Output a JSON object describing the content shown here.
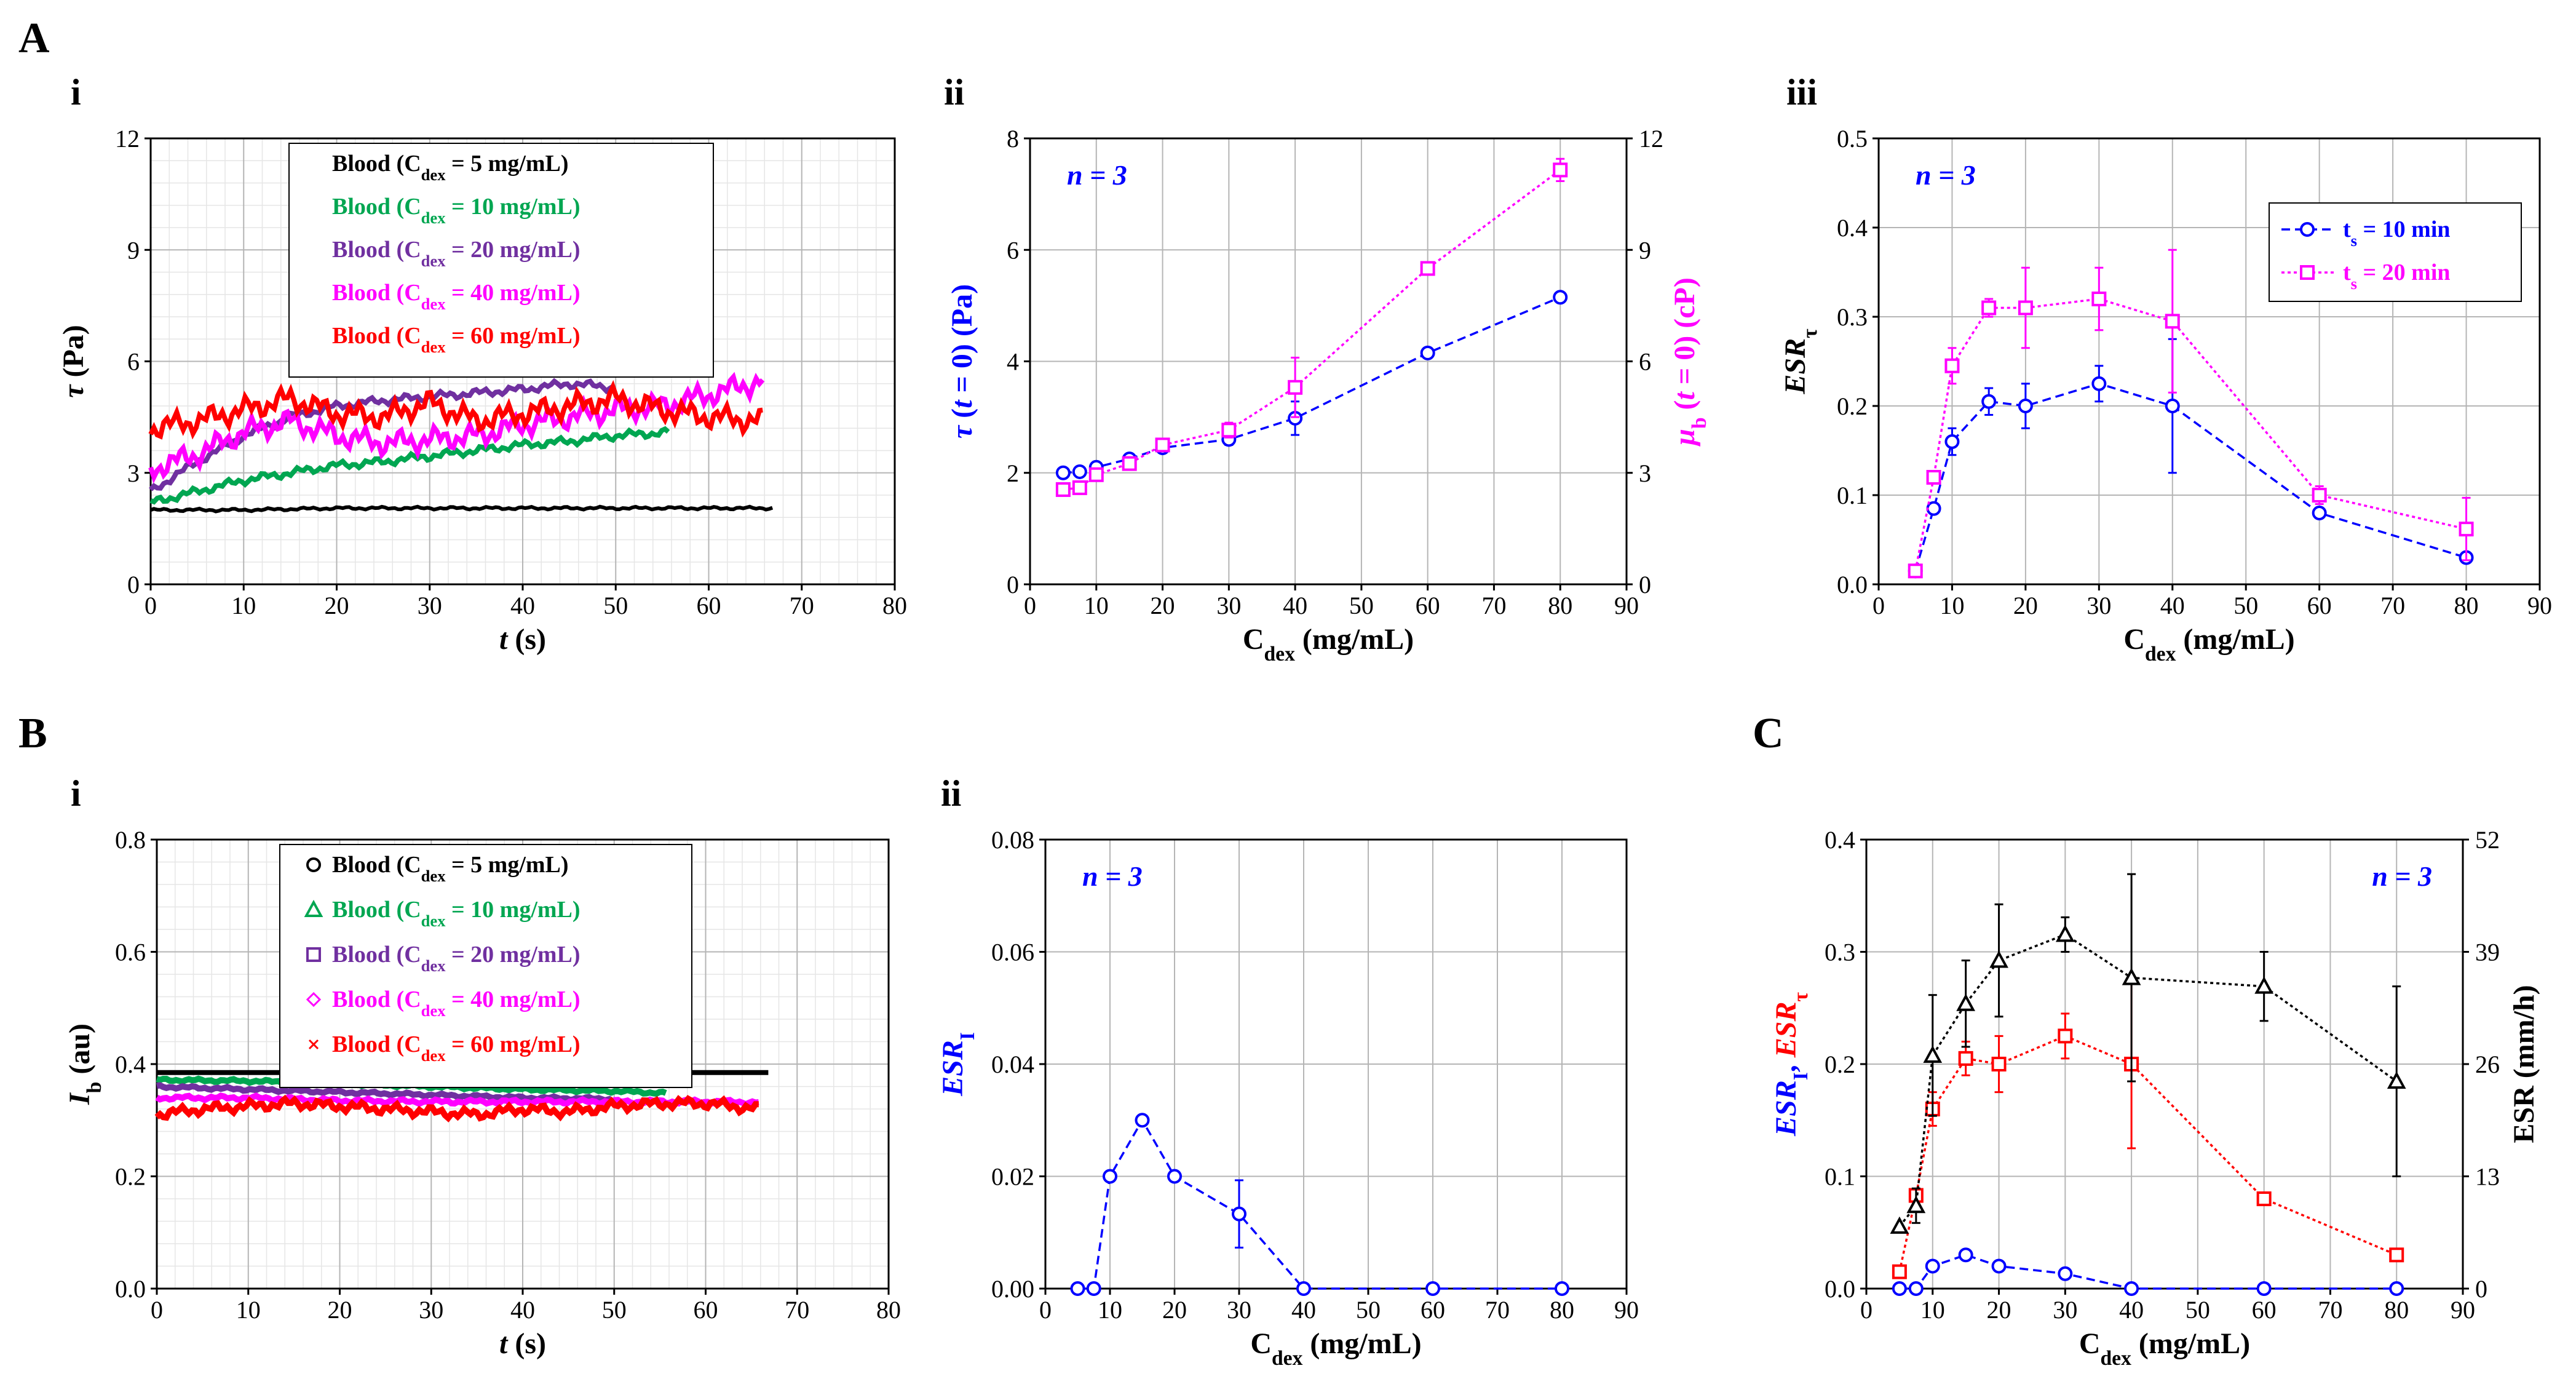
{
  "panel_labels": {
    "A": "A",
    "B": "B",
    "C": "C"
  },
  "legend_entries": [
    {
      "pre": "Blood (C",
      "sub": "dex",
      "post": " = 5 mg/mL)",
      "color": "#000000",
      "marker": "circle"
    },
    {
      "pre": "Blood (C",
      "sub": "dex",
      "post": " = 10 mg/mL)",
      "color": "#00a651",
      "marker": "triangle"
    },
    {
      "pre": "Blood (C",
      "sub": "dex",
      "post": " = 20 mg/mL)",
      "color": "#7030a0",
      "marker": "square"
    },
    {
      "pre": "Blood (C",
      "sub": "dex",
      "post": " = 40 mg/mL)",
      "color": "#ff00ff",
      "marker": "diamond"
    },
    {
      "pre": "Blood (C",
      "sub": "dex",
      "post": " = 60 mg/mL)",
      "color": "#ff0000",
      "marker": "x"
    }
  ],
  "chart_data": [
    {
      "id": "Ai",
      "panel": "i",
      "type": "line",
      "xlabel": "t (s)",
      "ylabel": "τ (Pa)",
      "xlim": [
        0,
        80
      ],
      "ylim": [
        0,
        12
      ],
      "xticks": [
        0,
        10,
        20,
        30,
        40,
        50,
        60,
        70,
        80
      ],
      "yticks": [
        0,
        3,
        6,
        9,
        12
      ],
      "legend_position": "top-center",
      "series": [
        {
          "name": "Blood (Cdex = 5 mg/mL)",
          "color": "#000000",
          "x": [
            0,
            10,
            20,
            30,
            40,
            50,
            60,
            67
          ],
          "y": [
            2.0,
            2.0,
            2.05,
            2.05,
            2.05,
            2.05,
            2.05,
            2.05
          ]
        },
        {
          "name": "Blood (Cdex = 10 mg/mL)",
          "color": "#00a651",
          "x": [
            0,
            5,
            10,
            15,
            20,
            25,
            30,
            35,
            40,
            45,
            50,
            56
          ],
          "y": [
            2.2,
            2.5,
            2.8,
            3.0,
            3.2,
            3.3,
            3.45,
            3.6,
            3.75,
            3.85,
            4.0,
            4.1
          ]
        },
        {
          "name": "Blood (Cdex = 20 mg/mL)",
          "color": "#7030a0",
          "x": [
            0,
            5,
            10,
            15,
            20,
            25,
            30,
            35,
            40,
            45,
            50
          ],
          "y": [
            2.5,
            3.3,
            4.0,
            4.5,
            4.8,
            4.95,
            5.05,
            5.15,
            5.25,
            5.4,
            5.3
          ]
        },
        {
          "name": "Blood (Cdex = 40 mg/mL)",
          "color": "#ff00ff",
          "x": [
            0,
            5,
            10,
            15,
            20,
            25,
            30,
            35,
            40,
            45,
            50,
            55,
            60,
            66
          ],
          "y": [
            3.1,
            3.5,
            4.1,
            4.4,
            4.0,
            3.8,
            3.9,
            4.0,
            4.3,
            4.5,
            4.7,
            4.8,
            5.1,
            5.5
          ]
        },
        {
          "name": "Blood (Cdex = 60 mg/mL)",
          "color": "#ff0000",
          "x": [
            0,
            5,
            10,
            15,
            20,
            25,
            30,
            35,
            40,
            45,
            50,
            55,
            60,
            66
          ],
          "y": [
            4.2,
            4.4,
            4.7,
            5.0,
            4.6,
            4.5,
            4.9,
            4.4,
            4.6,
            4.8,
            5.0,
            4.7,
            4.5,
            4.4
          ]
        }
      ]
    },
    {
      "id": "Aii",
      "panel": "ii",
      "type": "line",
      "xlabel": "Cdex (mg/mL)",
      "ylabel": "τ (t = 0) (Pa)",
      "ylabel2": "μb (t = 0) (cP)",
      "xlim": [
        0,
        90
      ],
      "ylim": [
        0,
        8
      ],
      "ylim2": [
        0,
        12
      ],
      "xticks": [
        0,
        10,
        20,
        30,
        40,
        50,
        60,
        70,
        80,
        90
      ],
      "yticks": [
        0,
        2,
        4,
        6,
        8
      ],
      "yticks2": [
        0,
        3,
        6,
        9,
        12
      ],
      "annotation": "n = 3",
      "series": [
        {
          "name": "τ (t = 0)",
          "axis": "left",
          "color": "#0000ff",
          "marker": "circle",
          "dash": "dashed",
          "x": [
            5,
            7.5,
            10,
            15,
            20,
            30,
            40,
            60,
            80
          ],
          "y": [
            2.0,
            2.02,
            2.1,
            2.25,
            2.45,
            2.6,
            2.98,
            4.15,
            5.15
          ],
          "err": [
            0,
            0,
            0.05,
            0.05,
            0.08,
            0.1,
            0.3,
            0.05,
            0.07
          ]
        },
        {
          "name": "μb (t = 0)",
          "axis": "right",
          "color": "#ff00ff",
          "marker": "square",
          "dash": "dotted",
          "x": [
            5,
            7.5,
            10,
            15,
            20,
            30,
            40,
            60,
            80
          ],
          "y": [
            2.55,
            2.6,
            2.95,
            3.25,
            3.75,
            4.15,
            5.3,
            8.5,
            11.15
          ],
          "err": [
            0,
            0,
            0.1,
            0.1,
            0.1,
            0.2,
            0.8,
            0.1,
            0.3
          ]
        }
      ]
    },
    {
      "id": "Aiii",
      "panel": "iii",
      "type": "line",
      "xlabel": "Cdex (mg/mL)",
      "ylabel": "ESRτ",
      "xlim": [
        0,
        90
      ],
      "ylim": [
        0,
        0.5
      ],
      "xticks": [
        0,
        10,
        20,
        30,
        40,
        50,
        60,
        70,
        80,
        90
      ],
      "yticks": [
        0.0,
        0.1,
        0.2,
        0.3,
        0.4,
        0.5
      ],
      "annotation": "n = 3",
      "legend_position": "top-right",
      "series": [
        {
          "name": "ts = 10 min",
          "color": "#0000ff",
          "marker": "circle",
          "dash": "dashed",
          "x": [
            5,
            7.5,
            10,
            15,
            20,
            30,
            40,
            60,
            80
          ],
          "y": [
            0.015,
            0.085,
            0.16,
            0.205,
            0.2,
            0.225,
            0.2,
            0.08,
            0.03
          ],
          "err": [
            0.005,
            0.005,
            0.015,
            0.015,
            0.025,
            0.02,
            0.075,
            0.005,
            0.005
          ]
        },
        {
          "name": "ts = 20 min",
          "color": "#ff00ff",
          "marker": "square",
          "dash": "dotted",
          "x": [
            5,
            7.5,
            10,
            15,
            20,
            30,
            40,
            60,
            80
          ],
          "y": [
            0.015,
            0.12,
            0.245,
            0.31,
            0.31,
            0.32,
            0.295,
            0.1,
            0.062
          ],
          "err": [
            0.005,
            0.005,
            0.02,
            0.01,
            0.045,
            0.035,
            0.08,
            0.01,
            0.035
          ]
        }
      ]
    },
    {
      "id": "Bi",
      "panel": "i",
      "type": "line",
      "xlabel": "t (s)",
      "ylabel": "Ib (au)",
      "xlim": [
        0,
        80
      ],
      "ylim": [
        0,
        0.8
      ],
      "xticks": [
        0,
        10,
        20,
        30,
        40,
        50,
        60,
        70,
        80
      ],
      "yticks": [
        0.0,
        0.2,
        0.4,
        0.6,
        0.8
      ],
      "legend_position": "top-center",
      "series": [
        {
          "name": "Blood (Cdex = 5 mg/mL)",
          "color": "#000000",
          "x": [
            0,
            10,
            20,
            30,
            40,
            50,
            60,
            67
          ],
          "y": [
            0.385,
            0.385,
            0.385,
            0.385,
            0.385,
            0.385,
            0.385,
            0.385
          ]
        },
        {
          "name": "Blood (Cdex = 10 mg/mL)",
          "color": "#00a651",
          "x": [
            0,
            10,
            20,
            30,
            40,
            50,
            56
          ],
          "y": [
            0.372,
            0.37,
            0.365,
            0.36,
            0.355,
            0.352,
            0.348
          ]
        },
        {
          "name": "Blood (Cdex = 20 mg/mL)",
          "color": "#7030a0",
          "x": [
            0,
            10,
            20,
            30,
            40,
            50
          ],
          "y": [
            0.36,
            0.355,
            0.35,
            0.345,
            0.34,
            0.338
          ]
        },
        {
          "name": "Blood (Cdex = 40 mg/mL)",
          "color": "#ff00ff",
          "x": [
            0,
            10,
            20,
            30,
            40,
            50,
            60,
            66
          ],
          "y": [
            0.34,
            0.34,
            0.335,
            0.333,
            0.333,
            0.333,
            0.333,
            0.332
          ]
        },
        {
          "name": "Blood (Cdex = 60 mg/mL)",
          "color": "#ff0000",
          "x": [
            0,
            5,
            10,
            15,
            20,
            25,
            30,
            35,
            40,
            45,
            50,
            55,
            60,
            66
          ],
          "y": [
            0.31,
            0.32,
            0.325,
            0.33,
            0.325,
            0.32,
            0.315,
            0.31,
            0.32,
            0.315,
            0.325,
            0.33,
            0.33,
            0.32
          ]
        }
      ]
    },
    {
      "id": "Bii",
      "panel": "ii",
      "type": "line",
      "xlabel": "Cdex (mg/mL)",
      "ylabel": "ESRI",
      "xlim": [
        0,
        90
      ],
      "ylim": [
        0,
        0.08
      ],
      "xticks": [
        0,
        10,
        20,
        30,
        40,
        50,
        60,
        70,
        80,
        90
      ],
      "yticks": [
        0.0,
        0.02,
        0.04,
        0.06,
        0.08
      ],
      "annotation": "n = 3",
      "series": [
        {
          "name": "ESRI",
          "color": "#0000ff",
          "marker": "circle",
          "dash": "dashed",
          "x": [
            5,
            7.5,
            10,
            15,
            20,
            30,
            40,
            60,
            80
          ],
          "y": [
            0,
            0,
            0.02,
            0.03,
            0.02,
            0.0133,
            0,
            0,
            0
          ],
          "err": [
            0,
            0,
            0,
            0,
            0,
            0.006,
            0,
            0,
            0
          ]
        }
      ]
    },
    {
      "id": "C",
      "panel": "C",
      "type": "line",
      "xlabel": "Cdex (mg/mL)",
      "ylabel": "ESRI, ESRτ",
      "ylabel2": "ESR (mm/h)",
      "xlim": [
        0,
        90
      ],
      "ylim": [
        0,
        0.4
      ],
      "ylim2": [
        0,
        52
      ],
      "xticks": [
        0,
        10,
        20,
        30,
        40,
        50,
        60,
        70,
        80,
        90
      ],
      "yticks": [
        0.0,
        0.1,
        0.2,
        0.3,
        0.4
      ],
      "yticks2": [
        0,
        13,
        26,
        39,
        52
      ],
      "annotation": "n = 3",
      "series": [
        {
          "name": "ESRτ",
          "axis": "left",
          "color": "#ff0000",
          "marker": "square",
          "dash": "dotted",
          "x": [
            5,
            7.5,
            10,
            15,
            20,
            30,
            40,
            60,
            80
          ],
          "y": [
            0.015,
            0.083,
            0.16,
            0.205,
            0.2,
            0.225,
            0.2,
            0.08,
            0.03
          ],
          "err": [
            0.005,
            0.005,
            0.015,
            0.015,
            0.025,
            0.02,
            0.075,
            0.005,
            0.005
          ]
        },
        {
          "name": "ESRI",
          "axis": "left",
          "color": "#0000ff",
          "marker": "circle",
          "dash": "dashed",
          "x": [
            5,
            7.5,
            10,
            15,
            20,
            30,
            40,
            60,
            80
          ],
          "y": [
            0,
            0,
            0.02,
            0.03,
            0.02,
            0.0133,
            0,
            0,
            0
          ],
          "err": [
            0,
            0,
            0,
            0,
            0,
            0,
            0,
            0,
            0
          ]
        },
        {
          "name": "ESR",
          "axis": "right",
          "color": "#000000",
          "marker": "triangle",
          "dash": "dotted",
          "x": [
            5,
            7.5,
            10,
            15,
            20,
            30,
            40,
            60,
            80
          ],
          "y": [
            7.2,
            9.6,
            27,
            33,
            38,
            41,
            36,
            35,
            24
          ],
          "err": [
            0,
            2,
            7,
            5,
            6.5,
            2,
            12,
            4,
            11
          ]
        }
      ]
    }
  ]
}
